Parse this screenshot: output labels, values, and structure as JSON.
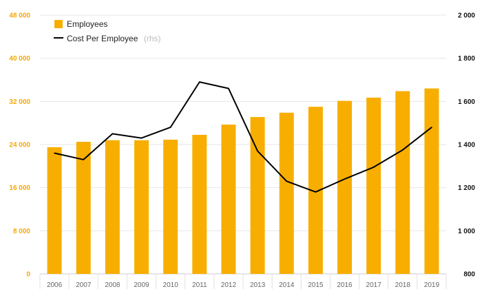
{
  "chart_data": {
    "type": "bar",
    "categories": [
      "2006",
      "2007",
      "2008",
      "2009",
      "2010",
      "2011",
      "2012",
      "2013",
      "2014",
      "2015",
      "2016",
      "2017",
      "2018",
      "2019"
    ],
    "series": [
      {
        "name": "Employees",
        "type": "bar",
        "axis": "left",
        "color": "#f8ae00",
        "values": [
          23500,
          24500,
          24800,
          24800,
          24900,
          25800,
          27700,
          29100,
          29900,
          31000,
          32100,
          32700,
          33900,
          34400
        ]
      },
      {
        "name": "Cost Per Employee",
        "name_suffix": "(rhs)",
        "type": "line",
        "axis": "right",
        "color": "#000000",
        "values": [
          1360,
          1330,
          1450,
          1430,
          1480,
          1690,
          1660,
          1370,
          1230,
          1180,
          1240,
          1295,
          1375,
          1480
        ]
      }
    ],
    "y_left": {
      "ylim": [
        0,
        48000
      ],
      "ticks": [
        0,
        8000,
        16000,
        24000,
        32000,
        40000,
        48000
      ],
      "tick_labels": [
        "0",
        "8 000",
        "16 000",
        "24 000",
        "32 000",
        "40 000",
        "48 000"
      ],
      "color": "#f6a800"
    },
    "y_right": {
      "ylim": [
        800,
        2000
      ],
      "ticks": [
        800,
        1000,
        1200,
        1400,
        1600,
        1800,
        2000
      ],
      "tick_labels": [
        "800",
        "1 000",
        "1 200",
        "1 400",
        "1 600",
        "1 800",
        "2 000"
      ],
      "color": "#111111"
    },
    "grid": true,
    "legend_position": "top-left"
  }
}
